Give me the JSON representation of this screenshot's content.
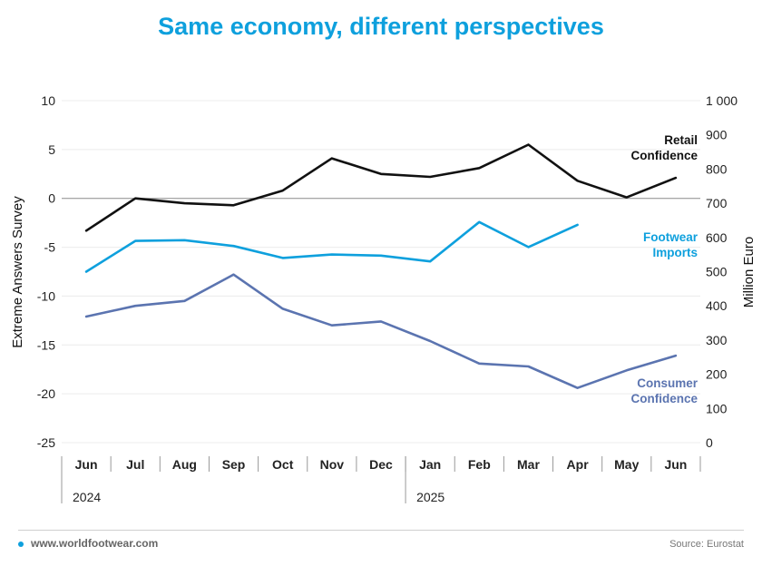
{
  "title": "Same economy, different perspectives",
  "footer": {
    "url": "www.worldfootwear.com",
    "source": "Source: Eurostat"
  },
  "colors": {
    "retail": "#111111",
    "footwear": "#0ea0dd",
    "consumer": "#5b74b0",
    "title": "#0ea0dd"
  },
  "chart_data": {
    "type": "line",
    "categories": [
      "Jun",
      "Jul",
      "Aug",
      "Sep",
      "Oct",
      "Nov",
      "Dec",
      "Jan",
      "Feb",
      "Mar",
      "Apr",
      "May",
      "Jun"
    ],
    "years": [
      {
        "label": "2024",
        "start_index": 0
      },
      {
        "label": "2025",
        "start_index": 7
      }
    ],
    "left_axis": {
      "label": "Extreme Answers Survey",
      "range": [
        -25,
        10
      ],
      "ticks": [
        10,
        5,
        0,
        -5,
        -10,
        -15,
        -20,
        -25
      ],
      "tick_labels": [
        "10",
        "5",
        "0",
        "-5",
        "-10",
        "-15",
        "-20",
        "-25"
      ]
    },
    "right_axis": {
      "label": "Million Euro",
      "range": [
        0,
        1000
      ],
      "ticks": [
        1000,
        900,
        800,
        700,
        600,
        500,
        400,
        300,
        200,
        100,
        0
      ],
      "tick_labels": [
        "1 000",
        "900",
        "800",
        "700",
        "600",
        "500",
        "400",
        "300",
        "200",
        "100",
        "0"
      ]
    },
    "series": [
      {
        "key": "retail",
        "name": "Retail Confidence",
        "label_lines": [
          "Retail",
          "Confidence"
        ],
        "axis": "left",
        "values": [
          -3.3,
          0.0,
          -0.5,
          -0.7,
          0.8,
          4.1,
          2.5,
          2.2,
          3.1,
          5.5,
          1.8,
          0.1,
          2.1
        ]
      },
      {
        "key": "footwear",
        "name": "Footwear Imports",
        "label_lines": [
          "Footwear",
          "Imports"
        ],
        "axis": "right",
        "values": [
          500,
          590,
          592,
          575,
          540,
          550,
          547,
          530,
          645,
          572,
          637,
          null,
          null
        ]
      },
      {
        "key": "consumer",
        "name": "Consumer Confidence",
        "label_lines": [
          "Consumer",
          "Confidence"
        ],
        "axis": "left",
        "values": [
          -12.1,
          -11.0,
          -10.5,
          -7.8,
          -11.3,
          -13.0,
          -12.6,
          -14.6,
          -16.9,
          -17.2,
          -19.4,
          -17.6,
          -16.1
        ]
      }
    ],
    "gridlines": true,
    "zero_line": true
  }
}
